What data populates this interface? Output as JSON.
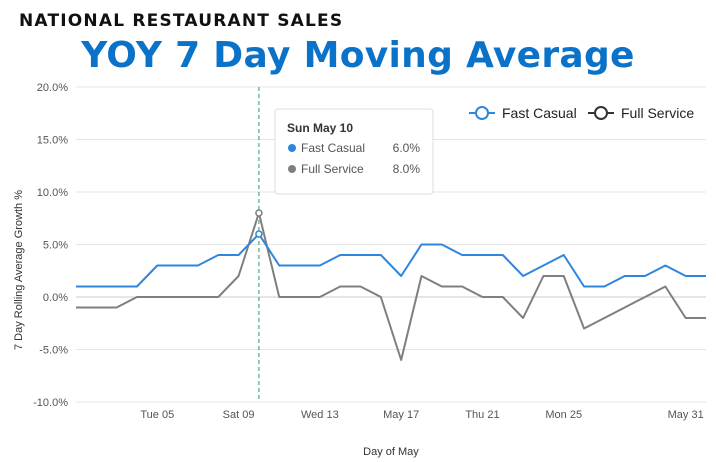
{
  "header": {
    "supertitle": "NATIONAL RESTAURANT SALES",
    "title": "YOY 7 Day Moving Average"
  },
  "chart_data": {
    "type": "line",
    "xlabel": "Day of May",
    "ylabel": "7 Day Rolling Average Growth %",
    "x": [
      1,
      2,
      3,
      4,
      5,
      6,
      7,
      8,
      9,
      10,
      11,
      12,
      13,
      14,
      15,
      16,
      17,
      18,
      19,
      20,
      21,
      22,
      23,
      24,
      25,
      26,
      27,
      28,
      29,
      30,
      31,
      32
    ],
    "x_ticks": [
      {
        "x": 5,
        "label": "Tue 05"
      },
      {
        "x": 9,
        "label": "Sat 09"
      },
      {
        "x": 13,
        "label": "Wed 13"
      },
      {
        "x": 17,
        "label": "May 17"
      },
      {
        "x": 21,
        "label": "Thu 21"
      },
      {
        "x": 25,
        "label": "Mon 25"
      },
      {
        "x": 31,
        "label": "May 31"
      }
    ],
    "xlim": [
      1,
      32
    ],
    "ylim": [
      -10,
      20
    ],
    "y_ticks": [
      -10,
      -5,
      0,
      5,
      10,
      15,
      20
    ],
    "y_tick_labels": [
      "-10.0%",
      "-5.0%",
      "0.0%",
      "5.0%",
      "10.0%",
      "15.0%",
      "20.0%"
    ],
    "grid": true,
    "legend_position": "top-right",
    "series": [
      {
        "name": "Fast Casual",
        "color": "#2e86de",
        "values": [
          1,
          1,
          1,
          1,
          3,
          3,
          3,
          4,
          4,
          6,
          3,
          3,
          3,
          4,
          4,
          4,
          2,
          5,
          5,
          4,
          4,
          4,
          2,
          3,
          4,
          1,
          1,
          2,
          2,
          3,
          2,
          2
        ]
      },
      {
        "name": "Full Service",
        "color": "#7f7f7f",
        "values": [
          -1,
          -1,
          -1,
          0,
          0,
          0,
          0,
          0,
          2,
          8,
          0,
          0,
          0,
          1,
          1,
          0,
          -6,
          2,
          1,
          1,
          0,
          0,
          -2,
          2,
          2,
          -3,
          -2,
          -1,
          0,
          1,
          -2,
          -2
        ]
      }
    ],
    "highlight": {
      "x": 10,
      "tooltip_title": "Sun May 10",
      "rows": [
        {
          "name": "Fast Casual",
          "value": "6.0%"
        },
        {
          "name": "Full Service",
          "value": "8.0%"
        }
      ]
    }
  }
}
